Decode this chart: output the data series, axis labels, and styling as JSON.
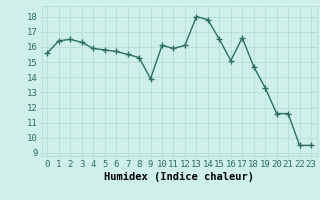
{
  "x": [
    0,
    1,
    2,
    3,
    4,
    5,
    6,
    7,
    8,
    9,
    10,
    11,
    12,
    13,
    14,
    15,
    16,
    17,
    18,
    19,
    20,
    21,
    22,
    23
  ],
  "y": [
    15.6,
    16.4,
    16.5,
    16.3,
    15.9,
    15.8,
    15.7,
    15.5,
    15.3,
    13.9,
    16.1,
    15.9,
    16.1,
    18.0,
    17.8,
    16.5,
    15.1,
    16.6,
    14.7,
    13.3,
    11.6,
    11.6,
    9.5,
    9.5
  ],
  "line_color": "#2d6e62",
  "marker": "+",
  "marker_size": 4,
  "bg_color": "#cff0ea",
  "grid_color": "#b8ddd7",
  "xlabel": "Humidex (Indice chaleur)",
  "ylim": [
    8.8,
    18.7
  ],
  "xlim": [
    -0.5,
    23.5
  ],
  "yticks": [
    9,
    10,
    11,
    12,
    13,
    14,
    15,
    16,
    17,
    18
  ],
  "xticks": [
    0,
    1,
    2,
    3,
    4,
    5,
    6,
    7,
    8,
    9,
    10,
    11,
    12,
    13,
    14,
    15,
    16,
    17,
    18,
    19,
    20,
    21,
    22,
    23
  ],
  "tick_fontsize": 6.5,
  "label_fontsize": 7.5,
  "line_width": 1.0
}
